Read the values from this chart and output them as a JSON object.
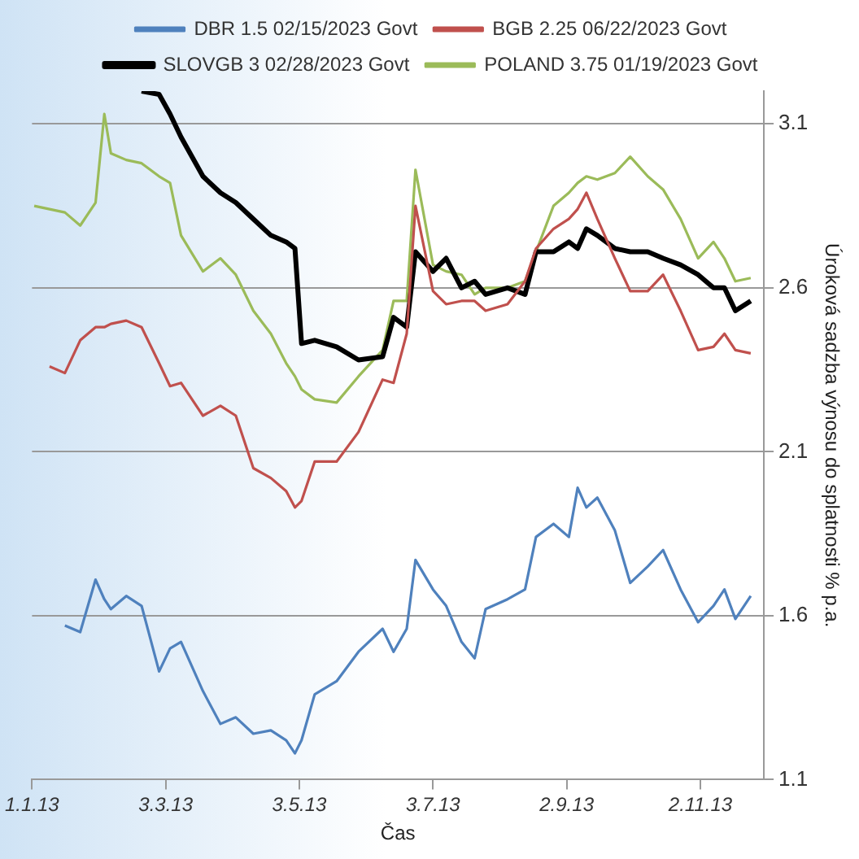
{
  "chart_data": {
    "type": "line",
    "xlabel": "Čas",
    "ylabel": "Úroková sadzba výnosu do splatnosti % p.a.",
    "legend": "top",
    "grid": "y",
    "marker": "none",
    "line_style": "solid",
    "xlim": [
      "2013-01-01",
      "2013-12-01"
    ],
    "xticks": [
      {
        "value": "2013-01-01",
        "label": "1.1.13"
      },
      {
        "value": "2013-03-03",
        "label": "3.3.13"
      },
      {
        "value": "2013-05-03",
        "label": "3.5.13"
      },
      {
        "value": "2013-07-03",
        "label": "3.7.13"
      },
      {
        "value": "2013-09-02",
        "label": "2.9.13"
      },
      {
        "value": "2013-11-02",
        "label": "2.11.13"
      }
    ],
    "ylim": [
      1.1,
      3.2
    ],
    "yticks": [
      1.1,
      1.6,
      2.1,
      2.6,
      3.1
    ],
    "x": [
      "2013-01-02",
      "2013-01-09",
      "2013-01-16",
      "2013-01-23",
      "2013-01-30",
      "2013-02-03",
      "2013-02-06",
      "2013-02-13",
      "2013-02-20",
      "2013-02-28",
      "2013-03-05",
      "2013-03-10",
      "2013-03-20",
      "2013-03-28",
      "2013-04-04",
      "2013-04-12",
      "2013-04-20",
      "2013-04-27",
      "2013-05-01",
      "2013-05-04",
      "2013-05-10",
      "2013-05-20",
      "2013-05-30",
      "2013-06-10",
      "2013-06-15",
      "2013-06-21",
      "2013-06-25",
      "2013-07-03",
      "2013-07-09",
      "2013-07-16",
      "2013-07-22",
      "2013-07-27",
      "2013-08-06",
      "2013-08-14",
      "2013-08-19",
      "2013-08-27",
      "2013-09-03",
      "2013-09-07",
      "2013-09-11",
      "2013-09-16",
      "2013-09-24",
      "2013-10-01",
      "2013-10-09",
      "2013-10-16",
      "2013-10-24",
      "2013-11-01",
      "2013-11-08",
      "2013-11-13",
      "2013-11-18",
      "2013-11-25"
    ],
    "series": [
      {
        "name": "DBR 1.5 02/15/2023 Govt",
        "color": "#4f81bd",
        "values": [
          null,
          null,
          1.57,
          1.55,
          1.71,
          1.65,
          1.62,
          1.66,
          1.63,
          1.43,
          1.5,
          1.52,
          1.37,
          1.27,
          1.29,
          1.24,
          1.25,
          1.22,
          1.18,
          1.22,
          1.36,
          1.4,
          1.49,
          1.56,
          1.49,
          1.56,
          1.77,
          1.68,
          1.63,
          1.52,
          1.47,
          1.62,
          1.65,
          1.68,
          1.84,
          1.88,
          1.84,
          1.99,
          1.93,
          1.96,
          1.86,
          1.7,
          1.75,
          1.8,
          1.68,
          1.58,
          1.63,
          1.68,
          1.59,
          1.66
        ]
      },
      {
        "name": "BGB 2.25 06/22/2023 Govt",
        "color": "#c0504d",
        "values": [
          null,
          2.36,
          2.34,
          2.44,
          2.48,
          2.48,
          2.49,
          2.5,
          2.48,
          2.37,
          2.3,
          2.31,
          2.21,
          2.24,
          2.21,
          2.05,
          2.02,
          1.98,
          1.93,
          1.95,
          2.07,
          2.07,
          2.16,
          2.32,
          2.31,
          2.46,
          2.85,
          2.59,
          2.55,
          2.56,
          2.56,
          2.53,
          2.55,
          2.62,
          2.72,
          2.78,
          2.81,
          2.84,
          2.89,
          2.81,
          2.69,
          2.59,
          2.59,
          2.64,
          2.53,
          2.41,
          2.42,
          2.46,
          2.41,
          2.4
        ]
      },
      {
        "name": "SLOVGB 3 02/28/2023 Govt",
        "color": "#000000",
        "values": [
          null,
          null,
          null,
          null,
          null,
          null,
          null,
          null,
          3.2,
          3.19,
          3.13,
          3.06,
          2.94,
          2.89,
          2.86,
          2.81,
          2.76,
          2.74,
          2.72,
          2.43,
          2.44,
          2.42,
          2.38,
          2.39,
          2.51,
          2.48,
          2.71,
          2.65,
          2.69,
          2.6,
          2.62,
          2.58,
          2.6,
          2.58,
          2.71,
          2.71,
          2.74,
          2.72,
          2.78,
          2.76,
          2.72,
          2.71,
          2.71,
          2.69,
          2.67,
          2.64,
          2.6,
          2.6,
          2.53,
          2.56
        ]
      },
      {
        "name": "POLAND 3.75 01/19/2023 Govt",
        "color": "#9bbb59",
        "values": [
          2.85,
          2.84,
          2.83,
          2.79,
          2.86,
          3.13,
          3.01,
          2.99,
          2.98,
          2.94,
          2.92,
          2.76,
          2.65,
          2.69,
          2.64,
          2.53,
          2.46,
          2.37,
          2.33,
          2.29,
          2.26,
          2.25,
          2.33,
          2.41,
          2.56,
          2.56,
          2.96,
          2.67,
          2.65,
          2.64,
          2.58,
          2.6,
          2.6,
          2.62,
          2.71,
          2.85,
          2.89,
          2.92,
          2.94,
          2.93,
          2.95,
          3.0,
          2.94,
          2.9,
          2.81,
          2.69,
          2.74,
          2.69,
          2.62,
          2.63
        ]
      }
    ]
  }
}
